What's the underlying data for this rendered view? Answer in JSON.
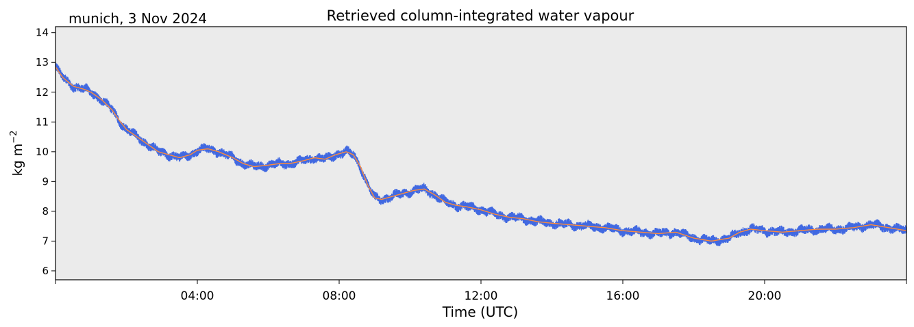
{
  "chart_data": {
    "type": "line",
    "title": "Retrieved column-integrated water vapour",
    "subtitle": "munich, 3 Nov 2024",
    "xlabel": "Time (UTC)",
    "ylabel_base": "kg m",
    "ylabel_exp": "−2",
    "xlim_hours": [
      0,
      24
    ],
    "ylim": [
      5.7,
      14.2
    ],
    "x_ticks": [
      {
        "hour": 4,
        "label": "04:00"
      },
      {
        "hour": 8,
        "label": "08:00"
      },
      {
        "hour": 12,
        "label": "12:00"
      },
      {
        "hour": 16,
        "label": "16:00"
      },
      {
        "hour": 20,
        "label": "20:00"
      }
    ],
    "x_minor_ticks_hours": [
      0,
      24
    ],
    "y_ticks": [
      6,
      7,
      8,
      9,
      10,
      11,
      12,
      13,
      14
    ],
    "grid": false,
    "plot_background": "#ebebeb",
    "series": [
      {
        "style": "scatter-band",
        "color": "#4169e1",
        "spread": 0.13,
        "hours": [
          0.0,
          0.2,
          0.5,
          0.8,
          1.0,
          1.3,
          1.6,
          1.8,
          2.0,
          2.3,
          2.6,
          2.9,
          3.2,
          3.5,
          3.8,
          4.0,
          4.3,
          4.6,
          5.0,
          5.3,
          5.6,
          6.0,
          6.3,
          6.6,
          7.0,
          7.3,
          7.6,
          7.9,
          8.2,
          8.4,
          8.6,
          8.8,
          9.0,
          9.2,
          9.5,
          9.8,
          10.1,
          10.4,
          10.7,
          11.0,
          11.3,
          11.6,
          12.0,
          12.4,
          12.8,
          13.2,
          13.6,
          14.0,
          14.5,
          15.0,
          15.5,
          16.0,
          16.5,
          17.0,
          17.5,
          18.0,
          18.5,
          19.0,
          19.3,
          19.6,
          20.0,
          20.5,
          21.0,
          21.5,
          22.0,
          22.5,
          23.0,
          23.5,
          24.0
        ],
        "values": [
          12.85,
          12.5,
          12.2,
          12.1,
          12.0,
          11.75,
          11.4,
          11.05,
          10.75,
          10.5,
          10.25,
          10.0,
          9.9,
          9.8,
          9.9,
          10.05,
          10.1,
          10.0,
          9.8,
          9.6,
          9.5,
          9.55,
          9.6,
          9.6,
          9.7,
          9.8,
          9.75,
          9.9,
          10.0,
          9.9,
          9.5,
          8.9,
          8.45,
          8.4,
          8.5,
          8.6,
          8.7,
          8.75,
          8.55,
          8.3,
          8.2,
          8.15,
          8.05,
          7.9,
          7.8,
          7.75,
          7.65,
          7.6,
          7.55,
          7.5,
          7.45,
          7.35,
          7.3,
          7.25,
          7.3,
          7.1,
          7.0,
          7.1,
          7.3,
          7.4,
          7.35,
          7.3,
          7.35,
          7.4,
          7.4,
          7.45,
          7.55,
          7.45,
          7.35
        ]
      },
      {
        "style": "line",
        "color": "#ff8c3a",
        "hours": [
          0.0,
          0.2,
          0.5,
          0.8,
          1.0,
          1.3,
          1.6,
          1.8,
          2.0,
          2.3,
          2.6,
          2.9,
          3.2,
          3.5,
          3.8,
          4.0,
          4.3,
          4.6,
          5.0,
          5.3,
          5.6,
          6.0,
          6.3,
          6.6,
          7.0,
          7.3,
          7.6,
          7.9,
          8.2,
          8.4,
          8.6,
          8.8,
          9.0,
          9.2,
          9.5,
          9.8,
          10.1,
          10.4,
          10.7,
          11.0,
          11.3,
          11.6,
          12.0,
          12.4,
          12.8,
          13.2,
          13.6,
          14.0,
          14.5,
          15.0,
          15.5,
          16.0,
          16.5,
          17.0,
          17.5,
          18.0,
          18.5,
          19.0,
          19.3,
          19.6,
          20.0,
          20.5,
          21.0,
          21.5,
          22.0,
          22.5,
          23.0,
          23.5,
          24.0
        ],
        "values": [
          12.85,
          12.5,
          12.2,
          12.1,
          12.0,
          11.75,
          11.4,
          11.05,
          10.75,
          10.5,
          10.25,
          10.0,
          9.9,
          9.8,
          9.9,
          10.05,
          10.1,
          10.0,
          9.8,
          9.6,
          9.5,
          9.55,
          9.6,
          9.6,
          9.7,
          9.8,
          9.75,
          9.9,
          10.0,
          9.9,
          9.5,
          8.9,
          8.45,
          8.4,
          8.5,
          8.6,
          8.7,
          8.75,
          8.55,
          8.3,
          8.2,
          8.15,
          8.05,
          7.9,
          7.8,
          7.75,
          7.65,
          7.6,
          7.55,
          7.5,
          7.45,
          7.35,
          7.3,
          7.25,
          7.3,
          7.1,
          7.0,
          7.1,
          7.3,
          7.4,
          7.35,
          7.3,
          7.35,
          7.4,
          7.4,
          7.45,
          7.55,
          7.45,
          7.35
        ]
      }
    ]
  }
}
